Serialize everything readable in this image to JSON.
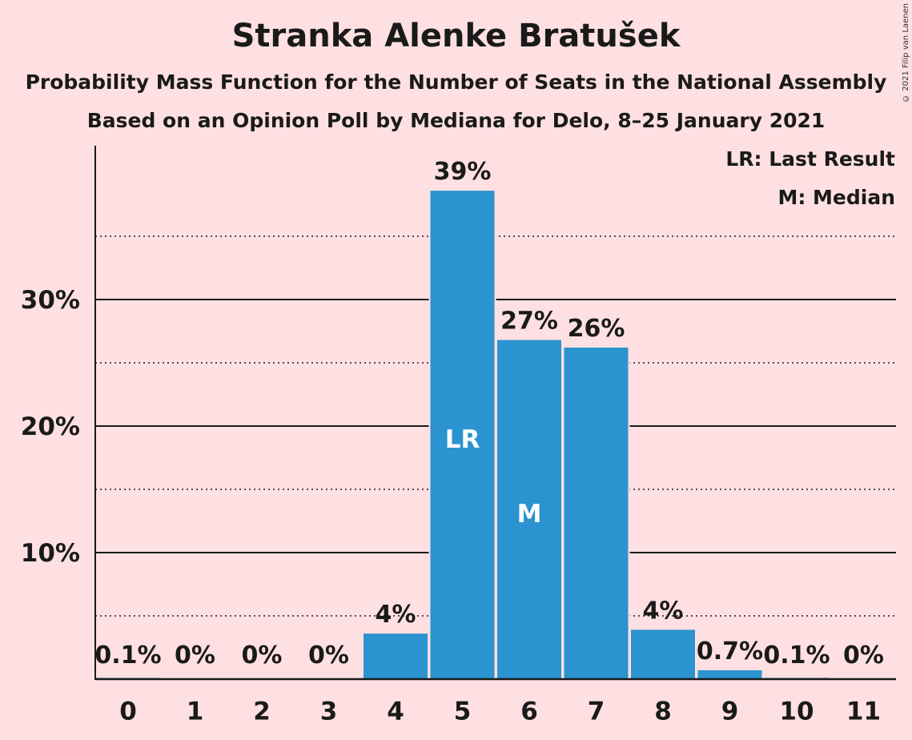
{
  "chart_data": {
    "type": "bar",
    "title": "Stranka Alenke Bratušek",
    "subtitle": "Probability Mass Function for the Number of Seats in the National Assembly",
    "subtitle2": "Based on an Opinion Poll by Mediana for Delo, 8–25 January 2021",
    "categories": [
      "0",
      "1",
      "2",
      "3",
      "4",
      "5",
      "6",
      "7",
      "8",
      "9",
      "10",
      "11"
    ],
    "values": [
      0.1,
      0,
      0,
      0,
      3.6,
      38.6,
      26.8,
      26.2,
      3.9,
      0.7,
      0.1,
      0
    ],
    "data_labels": [
      "0.1%",
      "0%",
      "0%",
      "0%",
      "4%",
      "39%",
      "27%",
      "26%",
      "4%",
      "0.7%",
      "0.1%",
      "0%"
    ],
    "ylim": [
      0,
      42
    ],
    "yticks": [
      10,
      20,
      30
    ],
    "ytick_labels": [
      "10%",
      "20%",
      "30%"
    ],
    "minor_gridlines": [
      5,
      15,
      25,
      35
    ],
    "bar_color": "#2b93cf",
    "markers": [
      {
        "category": "5",
        "text": "LR"
      },
      {
        "category": "6",
        "text": "M"
      }
    ],
    "legend": {
      "placement": "top-right",
      "entries": [
        "LR: Last Result",
        "M: Median"
      ]
    }
  },
  "copyright": "© 2021 Filip van Laenen"
}
